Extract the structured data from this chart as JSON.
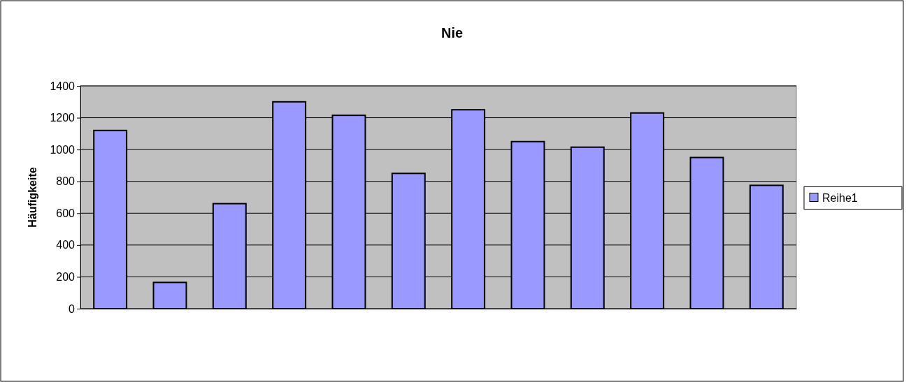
{
  "chart_data": {
    "type": "bar",
    "title": "Nie",
    "ylabel": "Häufigkeite",
    "categories": [
      null,
      null,
      null,
      null,
      null,
      null,
      null,
      null,
      null,
      null,
      null,
      null
    ],
    "series": [
      {
        "name": "Reihe1",
        "color": "#9999ff",
        "values": [
          1120,
          165,
          660,
          1300,
          1215,
          850,
          1250,
          1050,
          1015,
          1230,
          950,
          775
        ]
      }
    ],
    "ylim": [
      0,
      1400
    ],
    "yticks": [
      0,
      200,
      400,
      600,
      800,
      1000,
      1200,
      1400
    ],
    "grid": "y",
    "legend": "right"
  }
}
